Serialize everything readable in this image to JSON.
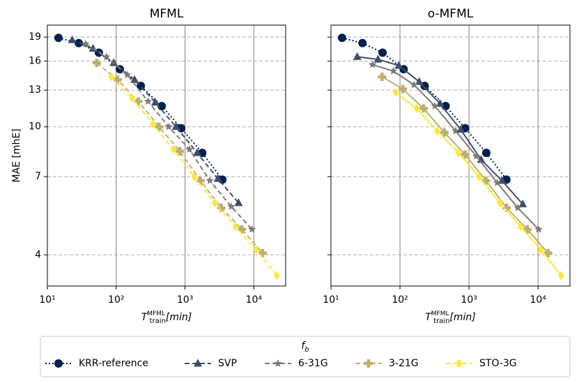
{
  "chart_data": [
    {
      "type": "line",
      "title": "MFML",
      "ylabel": "MAE [mhE]",
      "xlabel": {
        "base": "T",
        "sub": "train",
        "sup": "MFML",
        "unit": "[min]"
      },
      "xscale": "log",
      "yscale": "log",
      "grid": true,
      "linestyle": "dashed",
      "xlim": [
        10,
        29000
      ],
      "ylim": [
        3.2,
        20.7
      ],
      "xticks": [
        {
          "value": 10,
          "label": "10¹"
        },
        {
          "value": 100,
          "label": "10²"
        },
        {
          "value": 1000,
          "label": "10³"
        },
        {
          "value": 10000,
          "label": "10⁴"
        }
      ],
      "yticks": [
        4,
        7,
        10,
        13,
        16,
        19
      ],
      "legend_title": {
        "base": "f",
        "sub": "b"
      },
      "series": [
        {
          "name": "KRR-reference",
          "color": "#00204d",
          "marker": "circle",
          "linestyle": "dotted",
          "x": [
            14.5,
            28.6,
            56,
            113,
            228,
            458,
            881,
            1780,
            3490
          ],
          "values": [
            18.9,
            18.2,
            17.0,
            15.1,
            13.4,
            11.6,
            9.9,
            8.3,
            6.85
          ]
        },
        {
          "name": "SVP",
          "color": "#414d6b",
          "marker": "triangle",
          "x": [
            23,
            46,
            92,
            185,
            370,
            740,
            1500,
            3000,
            6000
          ],
          "values": [
            18.6,
            17.5,
            15.8,
            14.0,
            11.9,
            10.0,
            8.3,
            6.9,
            5.8
          ]
        },
        {
          "name": "6-31G",
          "color": "#7c7b78",
          "marker": "star",
          "x": [
            36,
            72,
            145,
            290,
            580,
            1160,
            2300,
            4700,
            9400
          ],
          "values": [
            18.1,
            16.5,
            14.5,
            12.0,
            10.0,
            8.5,
            6.8,
            5.65,
            4.8
          ]
        },
        {
          "name": "3-21G",
          "color": "#bcaf6f",
          "marker": "plus",
          "x": [
            52,
            105,
            210,
            420,
            840,
            1680,
            3350,
            6700,
            13400
          ],
          "values": [
            15.8,
            14.0,
            12.0,
            10.0,
            8.4,
            6.8,
            5.6,
            4.8,
            4.05
          ]
        },
        {
          "name": "STO-3G",
          "color": "#fde737",
          "marker": "diamond",
          "x": [
            85,
            170,
            340,
            680,
            1360,
            2700,
            5400,
            10800,
            21600
          ],
          "values": [
            14.3,
            12.3,
            10.2,
            8.5,
            7.0,
            5.8,
            4.9,
            4.15,
            3.45
          ]
        }
      ]
    },
    {
      "type": "line",
      "title": "o-MFML",
      "xlabel": {
        "base": "T",
        "sub": "train",
        "sup": "MFML",
        "unit": "[min]"
      },
      "xscale": "log",
      "yscale": "log",
      "grid": true,
      "linestyle": "solid",
      "xlim": [
        10,
        29000
      ],
      "ylim": [
        3.2,
        20.7
      ],
      "xticks": [
        {
          "value": 10,
          "label": "10¹"
        },
        {
          "value": 100,
          "label": "10²"
        },
        {
          "value": 1000,
          "label": "10³"
        },
        {
          "value": 10000,
          "label": "10⁴"
        }
      ],
      "yticks": [
        4,
        7,
        10,
        13,
        16,
        19
      ],
      "series": [
        {
          "color": "#00204d",
          "marker": "circle",
          "linestyle": "dotted",
          "x": [
            14.5,
            28.6,
            56,
            113,
            228,
            458,
            881,
            1780,
            3490
          ],
          "values": [
            18.9,
            18.2,
            17.0,
            15.1,
            13.4,
            11.6,
            9.9,
            8.3,
            6.85
          ]
        },
        {
          "color": "#414d6b",
          "marker": "triangle",
          "x": [
            24,
            48,
            96,
            190,
            380,
            760,
            1500,
            3000,
            6000
          ],
          "values": [
            16.5,
            16.2,
            15.5,
            13.8,
            11.8,
            9.8,
            7.9,
            6.8,
            5.75
          ]
        },
        {
          "color": "#7c7b78",
          "marker": "star",
          "x": [
            40,
            80,
            160,
            320,
            640,
            1280,
            2560,
            5100,
            10200
          ],
          "values": [
            15.6,
            14.9,
            13.5,
            11.6,
            9.7,
            8.1,
            6.7,
            5.6,
            4.8
          ]
        },
        {
          "color": "#bcaf6f",
          "marker": "plus",
          "x": [
            55,
            110,
            220,
            440,
            880,
            1760,
            3500,
            7000,
            14000
          ],
          "values": [
            14.3,
            13.1,
            11.4,
            9.6,
            8.2,
            6.8,
            5.6,
            4.8,
            4.05
          ]
        },
        {
          "color": "#fde737",
          "marker": "diamond",
          "x": [
            87,
            174,
            348,
            700,
            1400,
            2800,
            5600,
            11000,
            21600
          ],
          "values": [
            12.8,
            11.4,
            9.7,
            8.3,
            7.0,
            5.8,
            4.9,
            4.15,
            3.45
          ]
        }
      ]
    }
  ]
}
